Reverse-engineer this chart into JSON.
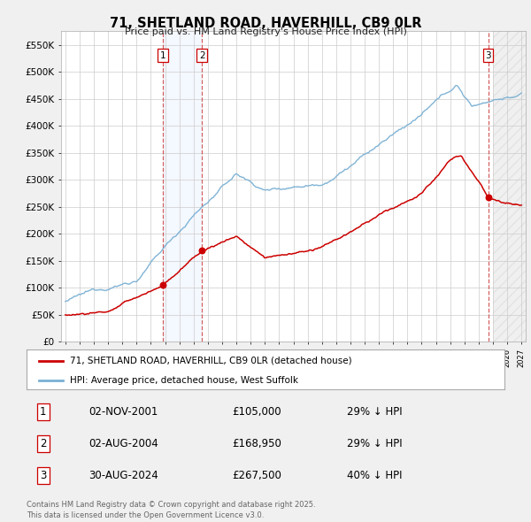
{
  "title": "71, SHETLAND ROAD, HAVERHILL, CB9 0LR",
  "subtitle": "Price paid vs. HM Land Registry's House Price Index (HPI)",
  "ylim": [
    0,
    575000
  ],
  "yticks": [
    0,
    50000,
    100000,
    150000,
    200000,
    250000,
    300000,
    350000,
    400000,
    450000,
    500000,
    550000
  ],
  "ytick_labels": [
    "£0",
    "£50K",
    "£100K",
    "£150K",
    "£200K",
    "£250K",
    "£300K",
    "£350K",
    "£400K",
    "£450K",
    "£500K",
    "£550K"
  ],
  "sale_dates_float": [
    2001.836,
    2004.583,
    2024.663
  ],
  "sale_prices": [
    105000,
    168950,
    267500
  ],
  "sale_labels": [
    "1",
    "2",
    "3"
  ],
  "vline_color_red": "#cc0000",
  "vline_color_blue": "#aaaadd",
  "shade_color": "#cce0ff",
  "red_line_color": "#cc0000",
  "blue_line_color": "#7ab0d4",
  "hatch_color": "#cccccc",
  "legend_red_label": "71, SHETLAND ROAD, HAVERHILL, CB9 0LR (detached house)",
  "legend_blue_label": "HPI: Average price, detached house, West Suffolk",
  "transactions": [
    {
      "label": "1",
      "date": "02-NOV-2001",
      "price": "£105,000",
      "hpi": "29% ↓ HPI"
    },
    {
      "label": "2",
      "date": "02-AUG-2004",
      "price": "£168,950",
      "hpi": "29% ↓ HPI"
    },
    {
      "label": "3",
      "date": "30-AUG-2024",
      "price": "£267,500",
      "hpi": "40% ↓ HPI"
    }
  ],
  "footer": "Contains HM Land Registry data © Crown copyright and database right 2025.\nThis data is licensed under the Open Government Licence v3.0.",
  "bg_color": "#f0f0f0",
  "plot_bg_color": "#ffffff",
  "xlim_left": 1994.7,
  "xlim_right": 2027.3,
  "hatch_start": 2025.0
}
